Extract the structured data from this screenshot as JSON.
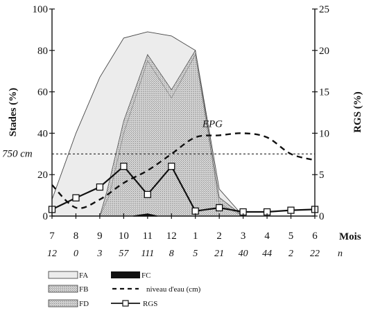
{
  "chart_data": {
    "type": "area",
    "x_ticks": [
      "7",
      "8",
      "9",
      "10",
      "11",
      "12",
      "1",
      "2",
      "3",
      "4",
      "5",
      "6"
    ],
    "n_values": [
      "12",
      "0",
      "3",
      "57",
      "111",
      "8",
      "5",
      "21",
      "40",
      "44",
      "2",
      "22"
    ],
    "xlabel": "Mois",
    "n_label": "n",
    "ylabel_left": "Stades (%)",
    "ylabel_right": "RGS (%)",
    "ylim_left": [
      0,
      100
    ],
    "ylim_right": [
      0,
      25
    ],
    "y_ticks_left": [
      "0",
      "20",
      "40",
      "60",
      "80",
      "100"
    ],
    "y_ticks_right": [
      "0",
      "5",
      "10",
      "15",
      "20",
      "25"
    ],
    "series": [
      {
        "name": "FA",
        "axis": "left",
        "x": [
          7,
          8,
          9,
          10,
          11,
          12,
          1,
          2,
          3
        ],
        "values": [
          8,
          40,
          67,
          86,
          89,
          87,
          80,
          13,
          0
        ]
      },
      {
        "name": "FB",
        "axis": "left",
        "x": [
          9,
          9.3,
          10,
          11,
          12,
          1,
          2,
          3
        ],
        "values": [
          0,
          12,
          46,
          78,
          61,
          80,
          9,
          0
        ]
      },
      {
        "name": "FD",
        "axis": "left",
        "x": [
          9,
          9.4,
          10,
          11,
          12,
          1,
          2,
          3
        ],
        "values": [
          0,
          10,
          40,
          75,
          57,
          78,
          6,
          0
        ]
      },
      {
        "name": "FC",
        "axis": "left",
        "x": [
          10.4,
          11,
          11.4
        ],
        "values": [
          0,
          1,
          0
        ]
      },
      {
        "name": "niveau d'eau (cm)",
        "axis": "left",
        "x": [
          7,
          8,
          9,
          10,
          11,
          12,
          1,
          2,
          3,
          4,
          5,
          6
        ],
        "values": [
          15,
          4,
          8,
          16,
          22,
          30,
          38,
          39,
          40,
          38,
          30,
          27
        ]
      },
      {
        "name": "RGS",
        "axis": "right",
        "x": [
          7,
          8,
          9,
          10,
          11,
          12,
          1,
          2,
          3,
          4,
          5,
          6
        ],
        "values": [
          0.8,
          2.2,
          3.5,
          6.0,
          2.6,
          6.0,
          0.6,
          1.0,
          0.5,
          0.5,
          0.7,
          0.8
        ]
      }
    ],
    "annotations": [
      {
        "text": "750 cm",
        "y": 30
      },
      {
        "text": "EPG",
        "x": 1.7,
        "y": 43
      }
    ],
    "legend": [
      {
        "label": "FA",
        "style": "open-box"
      },
      {
        "label": "FC",
        "style": "solid-box"
      },
      {
        "label": "FB",
        "style": "stippled-box"
      },
      {
        "label": "niveau d'eau (cm)",
        "style": "dashed-line"
      },
      {
        "label": "FD",
        "style": "stippled-box"
      },
      {
        "label": "RGS",
        "style": "line-square-marker"
      }
    ],
    "colors": {
      "fa_fill": "#ececec",
      "fb_fill": "#cfcfcf",
      "fd_fill": "#bdbdbd",
      "fc_fill": "#111111",
      "line": "#111111"
    }
  }
}
